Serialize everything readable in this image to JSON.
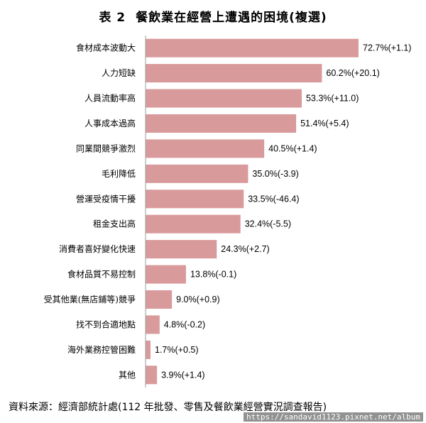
{
  "title": {
    "number": "表 2",
    "text": "餐飲業在經營上遭遇的困境(複選)"
  },
  "chart_data": {
    "type": "bar",
    "orientation": "horizontal",
    "bar_color": "#d99a9c",
    "axis_color": "#9e9e9e",
    "xlim": [
      0,
      80
    ],
    "categories": [
      "食材成本波動大",
      "人力短缺",
      "人員流動率高",
      "人事成本過高",
      "同業間競爭激烈",
      "毛利降低",
      "營運受疫情干擾",
      "租金支出高",
      "消費者喜好變化快速",
      "食材品質不易控制",
      "受其他業(無店鋪等)競爭",
      "找不到合適地點",
      "海外業務控管困難",
      "其他"
    ],
    "values": [
      72.7,
      60.2,
      53.3,
      51.4,
      40.5,
      35.0,
      33.5,
      32.4,
      24.3,
      13.8,
      9.0,
      4.8,
      1.7,
      3.9
    ],
    "data_labels": [
      "72.7%(+1.1)",
      "60.2%(+20.1)",
      "53.3%(+11.0)",
      "51.4%(+5.4)",
      "40.5%(+1.4)",
      "35.0%(-3.9)",
      "33.5%(-46.4)",
      "32.4%(-5.5)",
      "24.3%(+2.7)",
      "13.8%(-0.1)",
      "9.0%(+0.9)",
      "4.8%(-0.2)",
      "1.7%(+0.5)",
      "3.9%(+1.4)"
    ]
  },
  "source": "資料來源：經濟部統計處(112 年批發、零售及餐飲業經營實況調查報告)",
  "watermark": "https://sandavid1123.pixnet.net/album"
}
